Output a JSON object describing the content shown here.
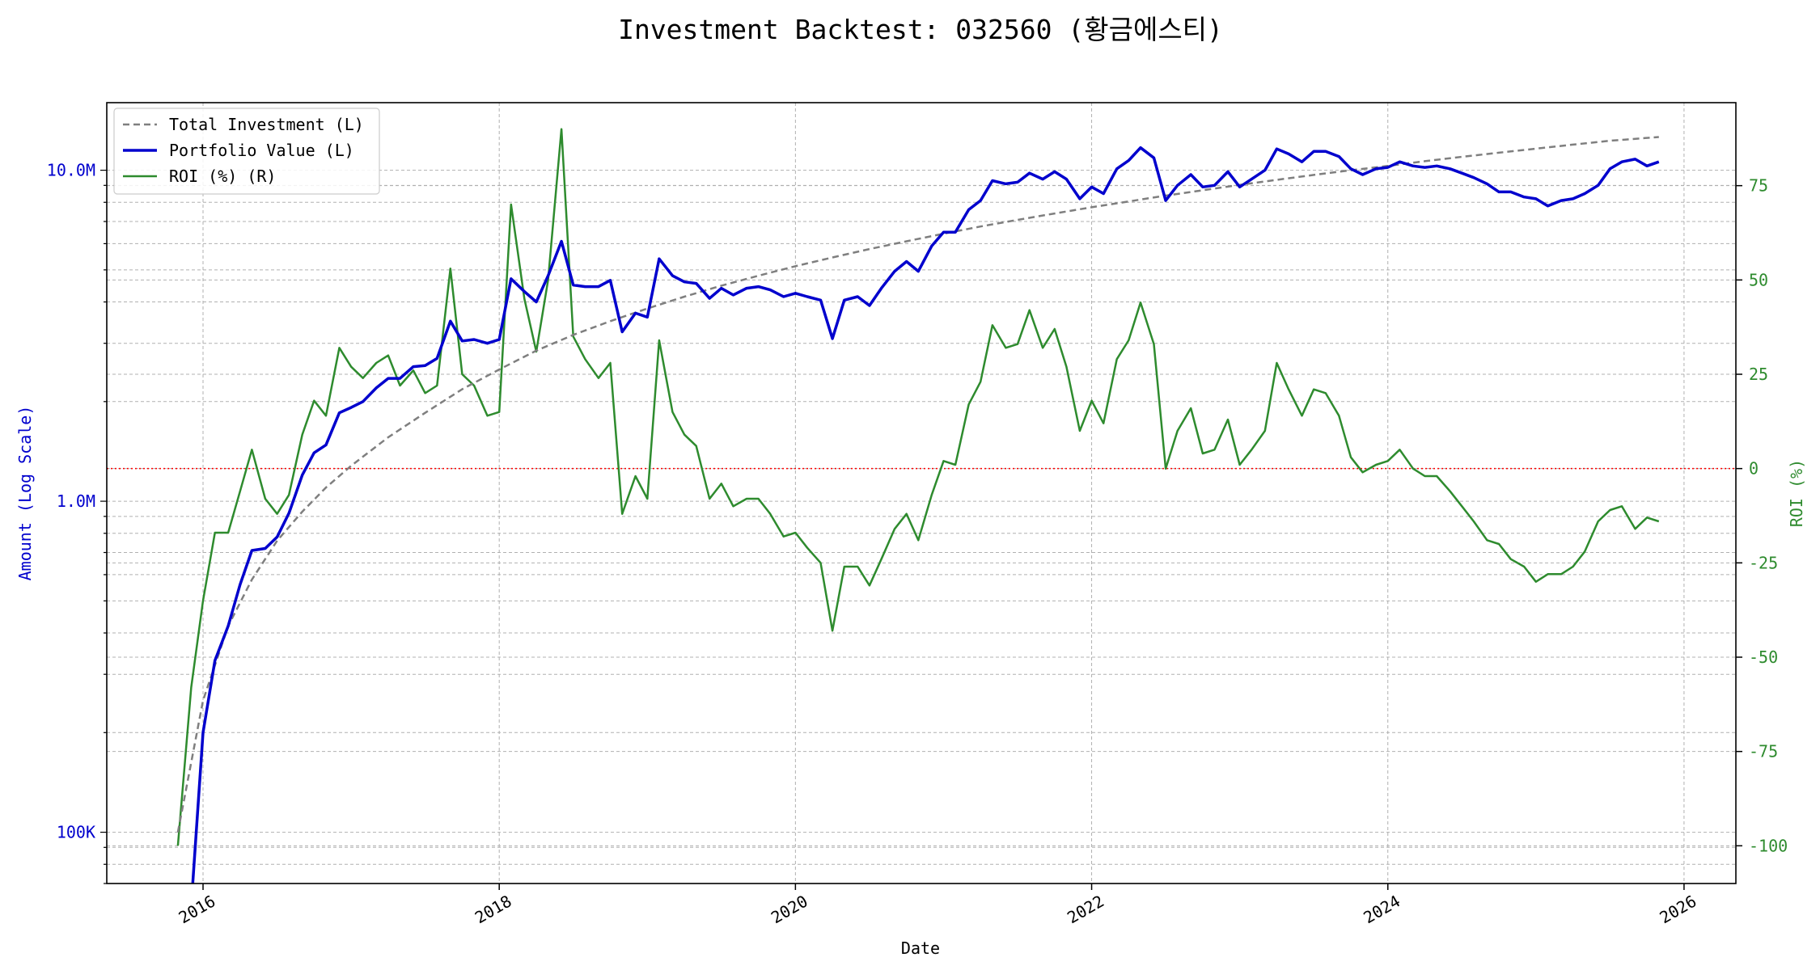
{
  "chart_data": {
    "type": "line",
    "title": "Investment Backtest: 032560 (황금에스티)",
    "xlabel": "Date",
    "ylabel_left": "Amount (Log Scale)",
    "ylabel_right": "ROI (%)",
    "x_ticks": [
      "2016",
      "2018",
      "2020",
      "2022",
      "2024",
      "2026"
    ],
    "y_left_scale": "log",
    "y_left_ticks": [
      {
        "value": 100000,
        "label": "100K"
      },
      {
        "value": 1000000,
        "label": "1.0M"
      },
      {
        "value": 10000000,
        "label": "10.0M"
      }
    ],
    "y_left_range": [
      70000,
      16000000
    ],
    "y_right_ticks": [
      -100,
      -75,
      -50,
      -25,
      0,
      25,
      50,
      75
    ],
    "y_right_range": [
      -110,
      97
    ],
    "x_range": [
      2015.35,
      2026.35
    ],
    "grid": true,
    "legend_position": "top-left",
    "roi_zero_line": 0,
    "colors": {
      "total_investment": "#7f7f7f",
      "portfolio_value": "#0000cd",
      "roi": "#2e8b2e",
      "zero_line": "#ff0000",
      "left_axis": "#0000cd",
      "right_axis": "#2e8b2e"
    },
    "series": [
      {
        "name": "Total Investment (L)",
        "axis": "left",
        "x": [
          2015.83,
          2016.0,
          2016.17,
          2016.33,
          2016.5,
          2016.67,
          2016.83,
          2017.0,
          2017.25,
          2017.5,
          2017.75,
          2018.0,
          2018.25,
          2018.5,
          2018.75,
          2019.0,
          2019.25,
          2019.5,
          2019.75,
          2020.0,
          2020.25,
          2020.5,
          2020.75,
          2021.0,
          2021.25,
          2021.5,
          2021.75,
          2022.0,
          2022.25,
          2022.5,
          2022.75,
          2023.0,
          2023.25,
          2023.5,
          2023.75,
          2024.0,
          2024.25,
          2024.5,
          2024.75,
          2025.0,
          2025.25,
          2025.5,
          2025.83
        ],
        "values": [
          100000,
          250000,
          420000,
          580000,
          760000,
          930000,
          1100000,
          1280000,
          1560000,
          1850000,
          2180000,
          2500000,
          2850000,
          3180000,
          3500000,
          3820000,
          4150000,
          4480000,
          4800000,
          5130000,
          5450000,
          5780000,
          6100000,
          6430000,
          6760000,
          7080000,
          7400000,
          7730000,
          8050000,
          8380000,
          8700000,
          9030000,
          9350000,
          9680000,
          10000000,
          10300000,
          10650000,
          10980000,
          11300000,
          11620000,
          11950000,
          12280000,
          12600000
        ]
      },
      {
        "name": "Portfolio Value (L)",
        "axis": "left",
        "x": [
          2015.92,
          2016.0,
          2016.08,
          2016.17,
          2016.25,
          2016.33,
          2016.42,
          2016.5,
          2016.58,
          2016.67,
          2016.75,
          2016.83,
          2016.92,
          2017.0,
          2017.08,
          2017.17,
          2017.25,
          2017.33,
          2017.42,
          2017.5,
          2017.58,
          2017.67,
          2017.75,
          2017.83,
          2017.92,
          2018.0,
          2018.08,
          2018.17,
          2018.25,
          2018.33,
          2018.42,
          2018.5,
          2018.58,
          2018.67,
          2018.75,
          2018.83,
          2018.92,
          2019.0,
          2019.08,
          2019.17,
          2019.25,
          2019.33,
          2019.42,
          2019.5,
          2019.58,
          2019.67,
          2019.75,
          2019.83,
          2019.92,
          2020.0,
          2020.08,
          2020.17,
          2020.25,
          2020.33,
          2020.42,
          2020.5,
          2020.58,
          2020.67,
          2020.75,
          2020.83,
          2020.92,
          2021.0,
          2021.08,
          2021.17,
          2021.25,
          2021.33,
          2021.42,
          2021.5,
          2021.58,
          2021.67,
          2021.75,
          2021.83,
          2021.92,
          2022.0,
          2022.08,
          2022.17,
          2022.25,
          2022.33,
          2022.42,
          2022.5,
          2022.58,
          2022.67,
          2022.75,
          2022.83,
          2022.92,
          2023.0,
          2023.08,
          2023.17,
          2023.25,
          2023.33,
          2023.42,
          2023.5,
          2023.58,
          2023.67,
          2023.75,
          2023.83,
          2023.92,
          2024.0,
          2024.08,
          2024.17,
          2024.25,
          2024.33,
          2024.42,
          2024.5,
          2024.58,
          2024.67,
          2024.75,
          2024.83,
          2024.92,
          2025.0,
          2025.08,
          2025.17,
          2025.25,
          2025.33,
          2025.42,
          2025.5,
          2025.58,
          2025.67,
          2025.75,
          2025.83
        ],
        "values": [
          60000,
          200000,
          330000,
          420000,
          560000,
          710000,
          720000,
          780000,
          920000,
          1200000,
          1400000,
          1480000,
          1850000,
          1920000,
          2000000,
          2200000,
          2350000,
          2350000,
          2550000,
          2570000,
          2700000,
          3500000,
          3050000,
          3080000,
          3000000,
          3080000,
          4700000,
          4300000,
          4000000,
          4800000,
          6100000,
          4500000,
          4450000,
          4450000,
          4650000,
          3250000,
          3700000,
          3600000,
          5400000,
          4800000,
          4600000,
          4550000,
          4100000,
          4400000,
          4200000,
          4400000,
          4450000,
          4350000,
          4150000,
          4250000,
          4150000,
          4050000,
          3100000,
          4050000,
          4150000,
          3900000,
          4400000,
          4950000,
          5300000,
          4950000,
          5900000,
          6500000,
          6500000,
          7600000,
          8100000,
          9300000,
          9100000,
          9200000,
          9800000,
          9400000,
          9900000,
          9400000,
          8200000,
          8900000,
          8500000,
          10100000,
          10700000,
          11700000,
          10900000,
          8100000,
          9000000,
          9700000,
          8900000,
          9000000,
          9900000,
          8900000,
          9400000,
          10000000,
          11600000,
          11200000,
          10600000,
          11400000,
          11400000,
          11000000,
          10100000,
          9700000,
          10100000,
          10200000,
          10600000,
          10300000,
          10200000,
          10300000,
          10100000,
          9800000,
          9500000,
          9100000,
          8600000,
          8600000,
          8300000,
          8200000,
          7800000,
          8100000,
          8200000,
          8500000,
          9000000,
          10100000,
          10600000,
          10800000,
          10300000,
          10600000
        ]
      },
      {
        "name": "ROI (%) (R)",
        "axis": "right",
        "x": [
          2015.83,
          2015.92,
          2016.0,
          2016.08,
          2016.17,
          2016.25,
          2016.33,
          2016.42,
          2016.5,
          2016.58,
          2016.67,
          2016.75,
          2016.83,
          2016.92,
          2017.0,
          2017.08,
          2017.17,
          2017.25,
          2017.33,
          2017.42,
          2017.5,
          2017.58,
          2017.67,
          2017.75,
          2017.83,
          2017.92,
          2018.0,
          2018.08,
          2018.17,
          2018.25,
          2018.33,
          2018.42,
          2018.5,
          2018.58,
          2018.67,
          2018.75,
          2018.83,
          2018.92,
          2019.0,
          2019.08,
          2019.17,
          2019.25,
          2019.33,
          2019.42,
          2019.5,
          2019.58,
          2019.67,
          2019.75,
          2019.83,
          2019.92,
          2020.0,
          2020.08,
          2020.17,
          2020.25,
          2020.33,
          2020.42,
          2020.5,
          2020.58,
          2020.67,
          2020.75,
          2020.83,
          2020.92,
          2021.0,
          2021.08,
          2021.17,
          2021.25,
          2021.33,
          2021.42,
          2021.5,
          2021.58,
          2021.67,
          2021.75,
          2021.83,
          2021.92,
          2022.0,
          2022.08,
          2022.17,
          2022.25,
          2022.33,
          2022.42,
          2022.5,
          2022.58,
          2022.67,
          2022.75,
          2022.83,
          2022.92,
          2023.0,
          2023.08,
          2023.17,
          2023.25,
          2023.33,
          2023.42,
          2023.5,
          2023.58,
          2023.67,
          2023.75,
          2023.83,
          2023.92,
          2024.0,
          2024.08,
          2024.17,
          2024.25,
          2024.33,
          2024.42,
          2024.5,
          2024.58,
          2024.67,
          2024.75,
          2024.83,
          2024.92,
          2025.0,
          2025.08,
          2025.17,
          2025.25,
          2025.33,
          2025.42,
          2025.5,
          2025.58,
          2025.67,
          2025.75,
          2025.83
        ],
        "values": [
          -100,
          -58,
          -35,
          -17,
          -17,
          -6,
          5,
          -8,
          -12,
          -7,
          9,
          18,
          14,
          32,
          27,
          24,
          28,
          30,
          22,
          26,
          20,
          22,
          53,
          25,
          22,
          14,
          15,
          70,
          45,
          31,
          50,
          90,
          35,
          29,
          24,
          28,
          -12,
          -2,
          -8,
          34,
          15,
          9,
          6,
          -8,
          -4,
          -10,
          -8,
          -8,
          -12,
          -18,
          -17,
          -21,
          -25,
          -43,
          -26,
          -26,
          -31,
          -24,
          -16,
          -12,
          -19,
          -7,
          2,
          1,
          17,
          23,
          38,
          32,
          33,
          42,
          32,
          37,
          27,
          10,
          18,
          12,
          29,
          34,
          44,
          33,
          0,
          10,
          16,
          4,
          5,
          13,
          1,
          5,
          10,
          28,
          21,
          14,
          21,
          20,
          14,
          3,
          -1,
          1,
          2,
          5,
          0,
          -2,
          -2,
          -6,
          -10,
          -14,
          -19,
          -20,
          -24,
          -26,
          -30,
          -28,
          -28,
          -26,
          -22,
          -14,
          -11,
          -10,
          -16,
          -13,
          -14
        ]
      }
    ]
  }
}
